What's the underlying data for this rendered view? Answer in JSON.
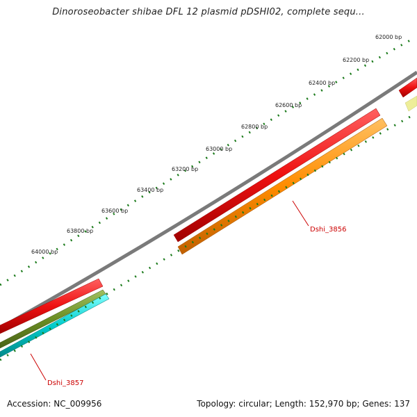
{
  "title": "Dinoroseobacter shibae DFL 12 plasmid pDSHI02, complete sequ...",
  "footer": {
    "accession": "Accession: NC_009956",
    "summary": "Topology: circular; Length: 152,970 bp; Genes: 137"
  },
  "ruler_labels": [
    "62000 bp",
    "62200 bp",
    "62400 bp",
    "62600 bp",
    "62800 bp",
    "63000 bp",
    "63200 bp",
    "63400 bp",
    "63600 bp",
    "63800 bp",
    "64000 bp"
  ],
  "gene_labels": [
    "Dshi_3856",
    "Dshi_3857"
  ],
  "colors": {
    "backbone": "#7a7a7a",
    "cds_red": "#ee1111",
    "cds_orange": "#ff8c00",
    "cds_olive": "#6b8e23",
    "cds_cyan": "#00cccc",
    "cds_yellow": "#eeee99",
    "tick_green": "#1a7a1a",
    "label_red": "#cc0000"
  }
}
